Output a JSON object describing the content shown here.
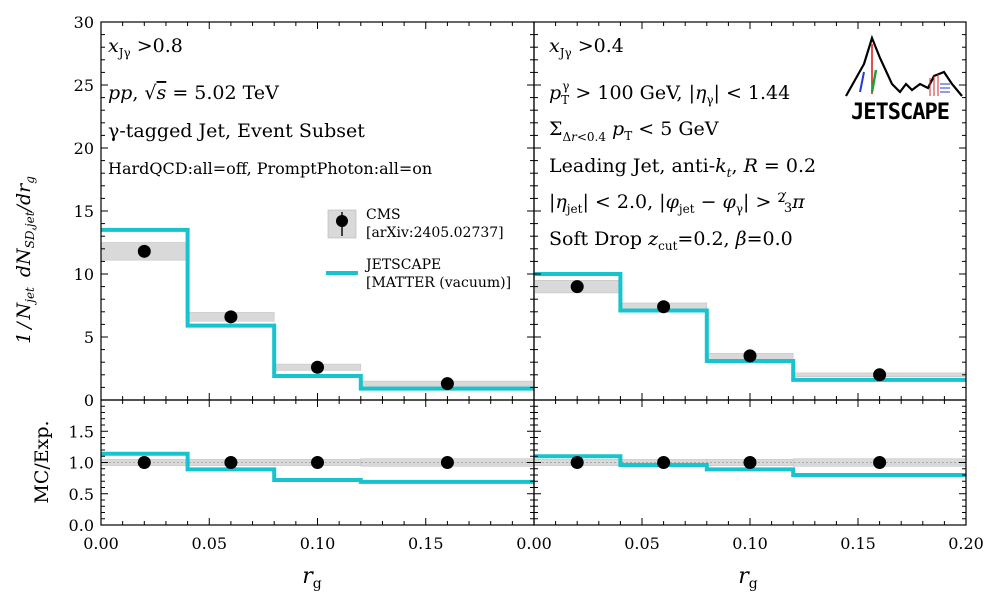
{
  "chart_data": {
    "type": "step",
    "ylabel_main": "1/N_jet dN_SD,jet/dr_g",
    "ylabel_ratio": "MC/Exp.",
    "xlabel": "r_g",
    "main_ylim": [
      0,
      30
    ],
    "main_yticks": [
      "0",
      "5",
      "10",
      "15",
      "20",
      "25",
      "30"
    ],
    "ratio_ylim": [
      0.0,
      2.0
    ],
    "ratio_yticks": [
      "0.0",
      "0.5",
      "1.0",
      "1.5"
    ],
    "xlim": [
      0.0,
      0.2
    ],
    "xticks_left": [
      "0.00",
      "0.05",
      "0.10",
      "0.15",
      "0.00"
    ],
    "xticks_right": [
      "0.05",
      "0.10",
      "0.15",
      "0.20"
    ],
    "bin_edges": [
      0.0,
      0.04,
      0.08,
      0.12,
      0.2
    ],
    "legend": {
      "cms_line1": "CMS",
      "cms_line2": "[arXiv:2405.02737]",
      "jetscape_line1": "JETSCAPE",
      "jetscape_line2": "[MATTER (vacuum)]"
    },
    "colors": {
      "jetscape": "#17c3cc",
      "cms": "#000000",
      "band": "#d9d9d9"
    },
    "logo_text": "JETSCAPE",
    "panels": [
      {
        "name": "left",
        "annotations": [
          "x_Jγ >0.8",
          "pp, √s = 5.02 TeV",
          "γ-tagged Jet, Event Subset",
          "HardQCD:all=off, PromptPhoton:all=on"
        ],
        "cms": {
          "x": [
            0.02,
            0.06,
            0.1,
            0.16
          ],
          "y": [
            11.8,
            6.6,
            2.6,
            1.3
          ],
          "band_half": [
            0.7,
            0.35,
            0.25,
            0.2
          ]
        },
        "jetscape": [
          13.5,
          5.9,
          1.9,
          0.9
        ],
        "ratio_cms": [
          1.0,
          1.0,
          1.0,
          1.0
        ],
        "ratio_band_half": [
          0.05,
          0.05,
          0.05,
          0.06
        ],
        "ratio_jetscape": [
          1.14,
          0.89,
          0.72,
          0.69
        ]
      },
      {
        "name": "right",
        "annotations": [
          "x_Jγ >0.4",
          "p_T^γ > 100 GeV, |η_γ| < 1.44",
          "Σ_{Δr<0.4} p_T < 5 GeV",
          "Leading Jet, anti-k_t, R = 0.2",
          "|η_jet| < 2.0, |φ_jet − φ_γ| > 2/3 π",
          "Soft Drop z_cut=0.2, β=0.0"
        ],
        "cms": {
          "x": [
            0.02,
            0.06,
            0.1,
            0.16
          ],
          "y": [
            9.0,
            7.4,
            3.5,
            2.0
          ],
          "band_half": [
            0.5,
            0.3,
            0.2,
            0.15
          ]
        },
        "jetscape": [
          10.0,
          7.1,
          3.1,
          1.6
        ],
        "ratio_cms": [
          1.0,
          1.0,
          1.0,
          1.0
        ],
        "ratio_band_half": [
          0.05,
          0.05,
          0.05,
          0.06
        ],
        "ratio_jetscape": [
          1.1,
          0.96,
          0.89,
          0.8
        ]
      }
    ]
  }
}
